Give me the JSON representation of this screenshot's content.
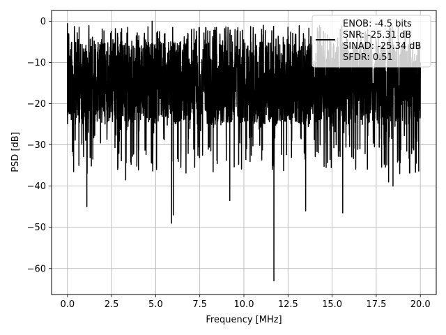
{
  "chart_data": {
    "type": "line",
    "title": "",
    "xlabel": "Frequency [MHz]",
    "ylabel": "PSD [dB]",
    "xlim": [
      -0.9,
      20.9
    ],
    "ylim": [
      -66.3,
      2.6
    ],
    "xticks": [
      0.0,
      2.5,
      5.0,
      7.5,
      10.0,
      12.5,
      15.0,
      17.5,
      20.0
    ],
    "xtick_labels": [
      "0.0",
      "2.5",
      "5.0",
      "7.5",
      "10.0",
      "12.5",
      "15.0",
      "17.5",
      "20.0"
    ],
    "yticks": [
      0,
      -10,
      -20,
      -30,
      -40,
      -50,
      -60
    ],
    "ytick_labels": [
      "0",
      "−10",
      "−20",
      "−30",
      "−40",
      "−50",
      "−60"
    ],
    "grid": true,
    "legend_position": "top-right",
    "series": [
      {
        "name": "ENOB: -4.5 bits\nSNR: -25.31 dB\nSINAD: -25.34 dB\nSFDR: 0.51",
        "color": "#000000",
        "x_range": [
          0.0,
          20.0
        ],
        "typical_max_db": -5,
        "typical_min_db": -25,
        "peaks": [
          {
            "x": 0.0,
            "y": -0.5
          },
          {
            "x": 0.0,
            "y": -22
          },
          {
            "x": 0.05,
            "y": -3
          },
          {
            "x": 4.8,
            "y": 0.0
          },
          {
            "x": 9.1,
            "y": -1.5
          },
          {
            "x": 11.1,
            "y": -1.0
          },
          {
            "x": 14.2,
            "y": -2.5
          }
        ],
        "dips": [
          {
            "x": 0.35,
            "y": -36.5
          },
          {
            "x": 0.65,
            "y": -35.0
          },
          {
            "x": 1.1,
            "y": -45.0
          },
          {
            "x": 3.3,
            "y": -38.5
          },
          {
            "x": 5.05,
            "y": -36.0
          },
          {
            "x": 5.9,
            "y": -49.0
          },
          {
            "x": 6.0,
            "y": -47.0
          },
          {
            "x": 9.2,
            "y": -43.5
          },
          {
            "x": 11.7,
            "y": -63.0
          },
          {
            "x": 13.5,
            "y": -46.0
          },
          {
            "x": 15.6,
            "y": -46.5
          },
          {
            "x": 18.2,
            "y": -39.0
          },
          {
            "x": 18.45,
            "y": -40.0
          }
        ]
      }
    ]
  }
}
